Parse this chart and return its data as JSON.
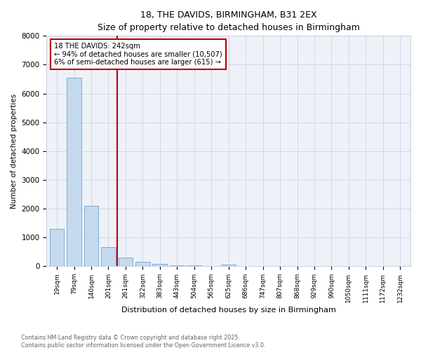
{
  "title": "18, THE DAVIDS, BIRMINGHAM, B31 2EX",
  "subtitle": "Size of property relative to detached houses in Birmingham",
  "xlabel": "Distribution of detached houses by size in Birmingham",
  "ylabel": "Number of detached properties",
  "bar_labels": [
    "19sqm",
    "79sqm",
    "140sqm",
    "201sqm",
    "261sqm",
    "322sqm",
    "383sqm",
    "443sqm",
    "504sqm",
    "565sqm",
    "625sqm",
    "686sqm",
    "747sqm",
    "807sqm",
    "868sqm",
    "929sqm",
    "990sqm",
    "1050sqm",
    "1111sqm",
    "1172sqm",
    "1232sqm"
  ],
  "bar_values": [
    1300,
    6550,
    2100,
    650,
    290,
    150,
    80,
    30,
    20,
    0,
    50,
    0,
    0,
    0,
    0,
    0,
    0,
    0,
    0,
    0,
    0
  ],
  "bar_color": "#c5d9ef",
  "bar_edge_color": "#7eadd4",
  "vline_x": 3.5,
  "vline_color": "#c00000",
  "annotation_title": "18 THE DAVIDS: 242sqm",
  "annotation_line1": "← 94% of detached houses are smaller (10,507)",
  "annotation_line2": "6% of semi-detached houses are larger (615) →",
  "annotation_box_color": "#c00000",
  "ylim": [
    0,
    8000
  ],
  "yticks": [
    0,
    1000,
    2000,
    3000,
    4000,
    5000,
    6000,
    7000,
    8000
  ],
  "bg_color": "#eef2f8",
  "grid_color": "#c8d4e8",
  "footer_line1": "Contains HM Land Registry data © Crown copyright and database right 2025.",
  "footer_line2": "Contains public sector information licensed under the Open Government Licence v3.0."
}
